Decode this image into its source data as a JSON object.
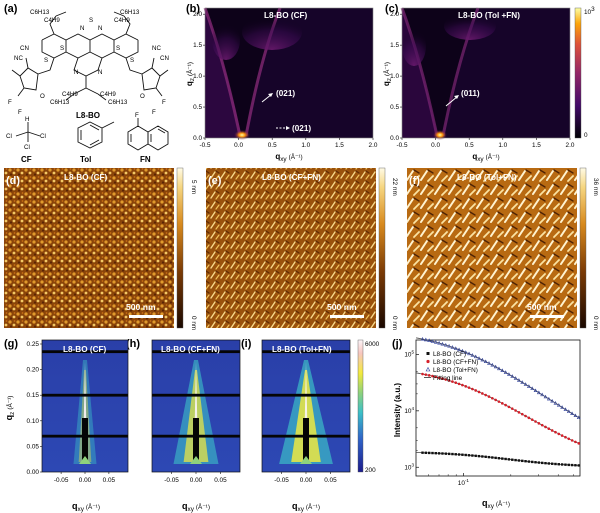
{
  "panels": {
    "a": {
      "label": "(a)",
      "molecule_name": "L8-BO",
      "chain_labels": [
        "C6H13",
        "C4H9",
        "C6H13",
        "C4H9",
        "C4H9",
        "C6H13",
        "C4H9",
        "C6H13"
      ],
      "atoms": [
        "N",
        "S",
        "N",
        "N",
        "N",
        "S",
        "S",
        "S",
        "S",
        "O",
        "O",
        "F",
        "F",
        "F",
        "F",
        "NC",
        "CN",
        "NC",
        "CN"
      ],
      "solvents": [
        {
          "name": "CF",
          "atoms": [
            "Cl",
            "Cl",
            "Cl",
            "H"
          ]
        },
        {
          "name": "Tol",
          "atoms": []
        },
        {
          "name": "FN",
          "atoms": [
            "F"
          ]
        }
      ]
    },
    "b": {
      "label": "(b)",
      "title": "L8-BO (CF)",
      "arrows": [
        "(021)",
        "(021)"
      ]
    },
    "c": {
      "label": "(c)",
      "title": "L8-BO (Tol +FN)",
      "arrows": [
        "(011)"
      ]
    },
    "giwaxs_axes": {
      "xlabel": "q",
      "xlabel_sub": "xy",
      "xlabel_unit": "(Å⁻¹)",
      "ylabel": "q",
      "ylabel_sub": "z",
      "ylabel_unit": "(Å⁻¹)",
      "xticks": [
        "-0.5",
        "0.0",
        "0.5",
        "1.0",
        "1.5",
        "2.0"
      ],
      "yticks": [
        "0.0",
        "0.5",
        "1.0",
        "1.5",
        "2.0"
      ],
      "colorbar_max": "10",
      "colorbar_max_exp": "3",
      "colorbar_min": "0"
    },
    "afm": [
      {
        "label": "(d)",
        "title": "L8-BO (CF)",
        "scale_bar": "500 nm",
        "cbar_top": "5 nm",
        "cbar_bottom": "0 nm"
      },
      {
        "label": "(e)",
        "title": "L8-BO (CF+FN)",
        "scale_bar": "500 nm",
        "cbar_top": "22 nm",
        "cbar_bottom": "0 nm"
      },
      {
        "label": "(f)",
        "title": "L8-BO (Tol+FN)",
        "scale_bar": "500 nm",
        "cbar_top": "36 nm",
        "cbar_bottom": "0 nm"
      }
    ],
    "gisaxs": [
      {
        "label": "(g)",
        "title": "L8-BO (CF)"
      },
      {
        "label": "(h)",
        "title": "L8-BO (CF+FN)"
      },
      {
        "label": "(i)",
        "title": "L8-BO (Tol+FN)"
      }
    ],
    "gisaxs_axes": {
      "xlabel": "q",
      "xlabel_sub": "xy",
      "xlabel_unit": "(Å⁻¹)",
      "ylabel": "q",
      "ylabel_sub": "z",
      "ylabel_unit": "(Å⁻¹)",
      "xticks": [
        "-0.05",
        "0.00",
        "0.05"
      ],
      "yticks": [
        "0.00",
        "0.05",
        "0.10",
        "0.15",
        "0.20",
        "0.25"
      ],
      "colorbar_max": "6000",
      "colorbar_min": "200"
    },
    "j": {
      "label": "(j)"
    }
  },
  "chart_data": {
    "type": "scatter",
    "title": "",
    "xlabel": "q",
    "xlabel_sub": "xy",
    "xlabel_unit": "(Å⁻¹)",
    "ylabel": "Intensity (a.u.)",
    "x_scale": "log",
    "y_scale": "log",
    "xlim": [
      0.005,
      0.055
    ],
    "ylim": [
      700,
      180000
    ],
    "x_tick_label": {
      "base": "10",
      "exp": "-1"
    },
    "y_tick_labels": [
      {
        "base": "10",
        "exp": "3"
      },
      {
        "base": "10",
        "exp": "4"
      },
      {
        "base": "10",
        "exp": "5"
      }
    ],
    "legend_placement": "top-left",
    "series": [
      {
        "name": "L8-BO (CF)",
        "marker": "square",
        "color": "#111111",
        "model": {
          "A": 900,
          "xi": 60,
          "bg": 1000
        }
      },
      {
        "name": "L8-BO (CF+FN)",
        "marker": "circle",
        "color": "#d6202a",
        "model": {
          "A": 60000,
          "xi": 110,
          "bg": 1000
        }
      },
      {
        "name": "L8-BO (Tol+FN)",
        "marker": "triangle",
        "color": "#2c3e9c",
        "model": {
          "A": 260000,
          "xi": 115,
          "bg": 1000
        }
      }
    ],
    "fit_line": {
      "name": "Fitting line",
      "color": "#444444"
    }
  }
}
